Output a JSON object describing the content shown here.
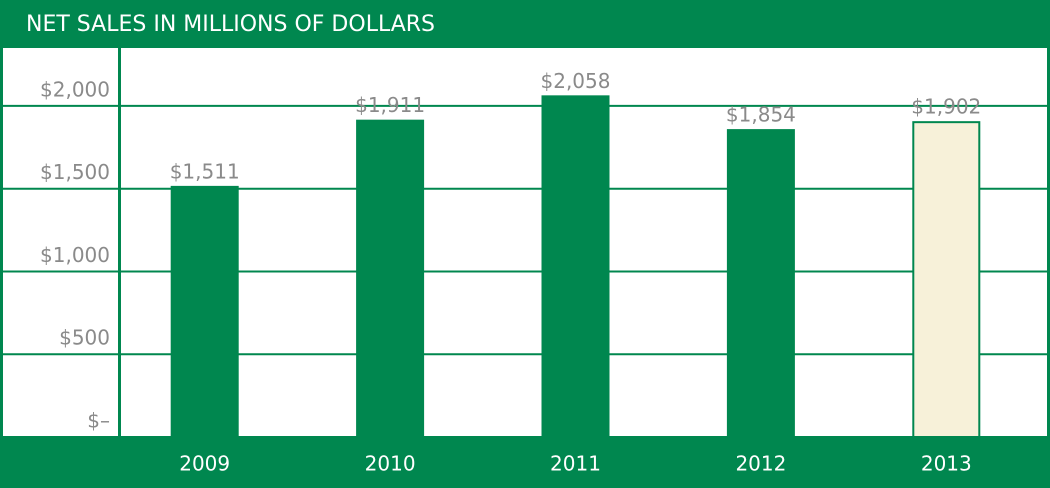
{
  "chart_data": {
    "type": "bar",
    "title": "NET SALES IN MILLIONS OF DOLLARS",
    "categories": [
      "2009",
      "2010",
      "2011",
      "2012",
      "2013"
    ],
    "values": [
      1511,
      1911,
      2058,
      1854,
      1902
    ],
    "value_labels": [
      "$1,511",
      "$1,911",
      "$2,058",
      "$1,854",
      "$1,902"
    ],
    "colors": [
      "#00874f",
      "#00874f",
      "#00874f",
      "#00874f",
      "#f7f1d9"
    ],
    "ylim": [
      0,
      2350
    ],
    "yticks": [
      {
        "value": 0,
        "label": "$–"
      },
      {
        "value": 500,
        "label": "$500"
      },
      {
        "value": 1000,
        "label": "$1,000"
      },
      {
        "value": 1500,
        "label": "$1,500"
      },
      {
        "value": 2000,
        "label": "$2,000"
      }
    ],
    "grid": true
  }
}
